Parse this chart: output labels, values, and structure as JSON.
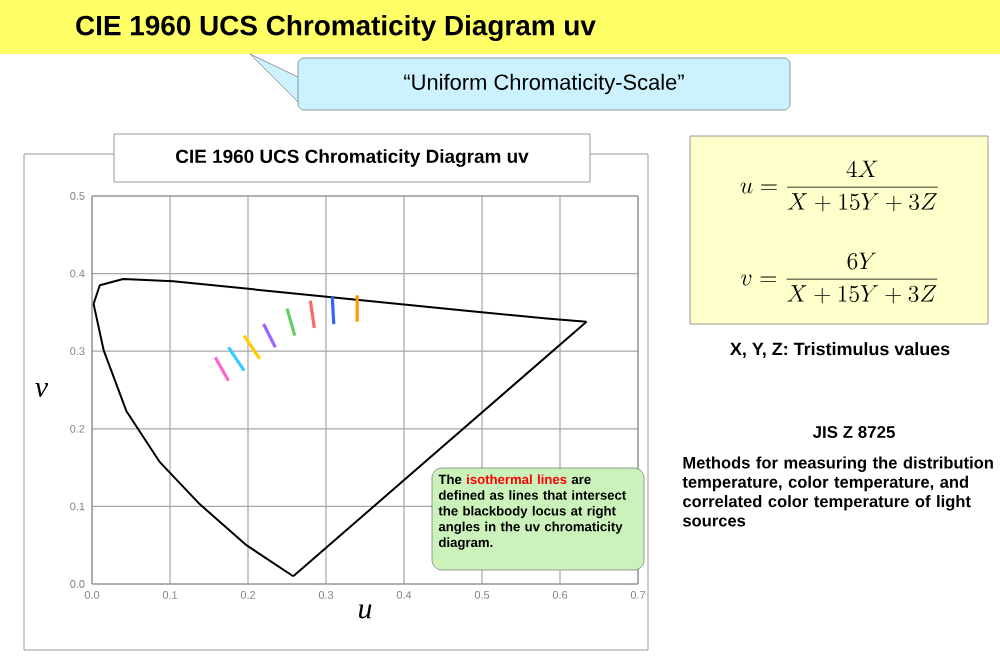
{
  "chart_data": {
    "type": "line",
    "title": "CIE 1960 UCS Chromaticity Diagram uv",
    "subtitle": "“Uniform Chromaticity-Scale”",
    "xlabel": "u",
    "ylabel": "v",
    "xlim": [
      0,
      0.7
    ],
    "ylim": [
      0,
      0.5
    ],
    "xticks": [
      {
        "value": 0,
        "label": "0.0"
      },
      {
        "value": 0.1,
        "label": "0.1"
      },
      {
        "value": 0.2,
        "label": "0.2"
      },
      {
        "value": 0.3,
        "label": "0.3"
      },
      {
        "value": 0.4,
        "label": "0.4"
      },
      {
        "value": 0.5,
        "label": "0.5"
      },
      {
        "value": 0.6,
        "label": "0.6"
      },
      {
        "value": 0.7,
        "label": "0.7"
      }
    ],
    "yticks": [
      {
        "value": 0,
        "label": "0.0"
      },
      {
        "value": 0.1,
        "label": "0.1"
      },
      {
        "value": 0.2,
        "label": "0.2"
      },
      {
        "value": 0.3,
        "label": "0.3"
      },
      {
        "value": 0.4,
        "label": "0.4"
      },
      {
        "value": 0.5,
        "label": "0.5"
      }
    ],
    "grid": true,
    "marker": "none",
    "line_style": "solid",
    "series": [
      {
        "color": "#000000",
        "x": [
          0.258,
          0.198,
          0.138,
          0.087,
          0.044,
          0.015,
          0.002
        ],
        "values": [
          0.01,
          0.05,
          0.103,
          0.157,
          0.223,
          0.301,
          0.361
        ]
      },
      {
        "color": "#000000",
        "x": [
          0.002,
          0.01,
          0.04,
          0.104,
          0.224,
          0.352,
          0.48,
          0.583,
          0.634
        ],
        "values": [
          0.361,
          0.385,
          0.393,
          0.39,
          0.378,
          0.365,
          0.352,
          0.342,
          0.338
        ]
      },
      {
        "color": "#000000",
        "x": [
          0.258,
          0.634
        ],
        "values": [
          0.01,
          0.338
        ]
      },
      {
        "color": "#ff66cc",
        "x": [
          0.175,
          0.158
        ],
        "values": [
          0.262,
          0.292
        ]
      },
      {
        "color": "#33ccff",
        "x": [
          0.195,
          0.175
        ],
        "values": [
          0.275,
          0.305
        ]
      },
      {
        "color": "#ffcc00",
        "x": [
          0.215,
          0.195
        ],
        "values": [
          0.29,
          0.32
        ]
      },
      {
        "color": "#9966ff",
        "x": [
          0.235,
          0.22
        ],
        "values": [
          0.305,
          0.335
        ]
      },
      {
        "color": "#66cc66",
        "x": [
          0.26,
          0.25
        ],
        "values": [
          0.32,
          0.355
        ]
      },
      {
        "color": "#ff6666",
        "x": [
          0.285,
          0.28
        ],
        "values": [
          0.33,
          0.365
        ]
      },
      {
        "color": "#3366ff",
        "x": [
          0.31,
          0.308
        ],
        "values": [
          0.335,
          0.37
        ]
      },
      {
        "color": "#ff9900",
        "x": [
          0.34,
          0.34
        ],
        "values": [
          0.338,
          0.372
        ]
      }
    ],
    "annotations": [
      "CIE 1960 UCS Chromaticity Diagram uv",
      "u=\\frac{4X}{X+15Y+3Z}",
      "v=\\frac{6Y}{X+15Y+3Z}",
      "X, Y, Z: Tristimulus values",
      "JIS Z 8725",
      "Methods for measuring the distribution temperature, color temperature, and correlated color temperature of light sources",
      "The",
      "isothermal lines",
      "are defined as lines that intersect the blackbody locus at right angles in the uv chromaticity diagram."
    ]
  }
}
